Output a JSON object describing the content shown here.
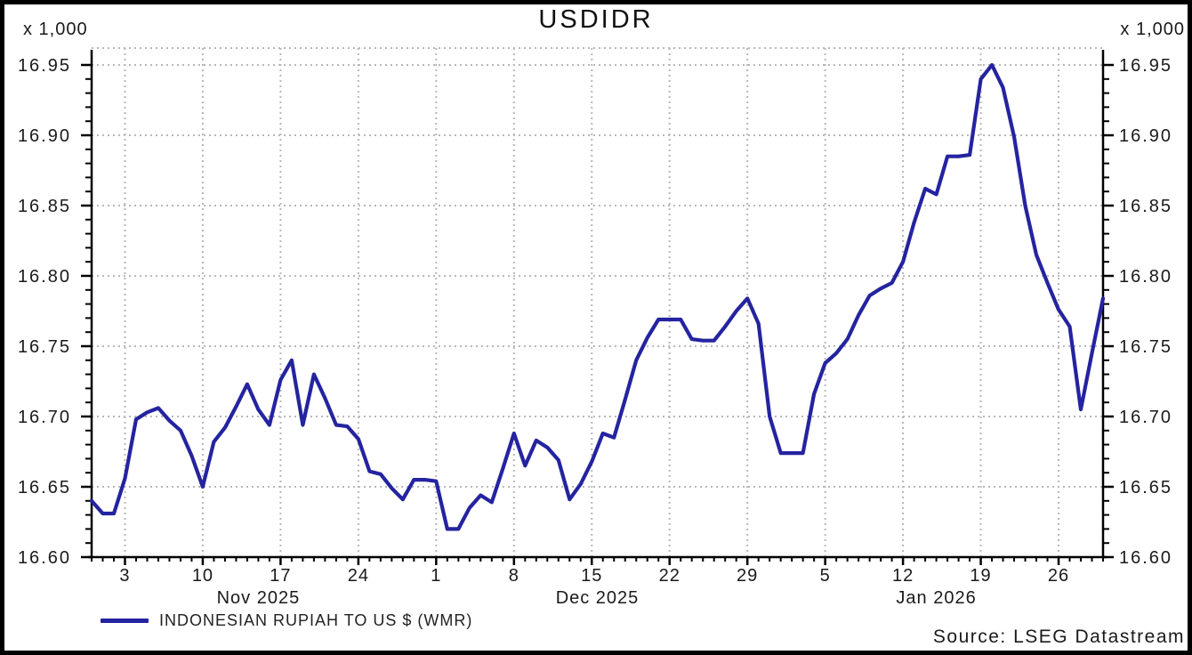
{
  "title": "USDIDR",
  "y_multiplier_label": "x 1,000",
  "source": "Source: LSEG Datastream",
  "legend": {
    "series_label": "INDONESIAN RUPIAH TO US $ (WMR)"
  },
  "colors": {
    "line": "#2424A0",
    "grid": "#b8b8b8",
    "axis": "#000000",
    "text": "#1a1a1a",
    "background": "#ffffff",
    "border": "#000000"
  },
  "chart_data": {
    "type": "line",
    "title": "USDIDR",
    "xlabel": "",
    "ylabel": "x 1,000",
    "ylim": [
      16.6,
      16.95
    ],
    "y_tick_step": 0.05,
    "y_minor_tick_step": 0.01,
    "y_tick_labels": [
      "16.95",
      "16.90",
      "16.85",
      "16.80",
      "16.75",
      "16.70",
      "16.65",
      "16.60"
    ],
    "y_axis_both_sides": true,
    "grid": "dotted",
    "legend_position": "bottom-left",
    "x_tick_indices": [
      3,
      10,
      17,
      24,
      31,
      38,
      45,
      52,
      59,
      66,
      73,
      80,
      87
    ],
    "x_tick_labels": [
      "3",
      "10",
      "17",
      "24",
      "1",
      "8",
      "15",
      "22",
      "29",
      "5",
      "12",
      "19",
      "26"
    ],
    "month_labels": [
      {
        "label": "Nov 2025",
        "center_index": 15
      },
      {
        "label": "Dec 2025",
        "center_index": 45.5
      },
      {
        "label": "Jan 2026",
        "center_index": 76
      }
    ],
    "series": [
      {
        "name": "INDONESIAN RUPIAH TO US $ (WMR)",
        "color": "#2424A0",
        "dates": [
          "2025-10-31",
          "2025-11-01",
          "2025-11-02",
          "2025-11-03",
          "2025-11-04",
          "2025-11-05",
          "2025-11-06",
          "2025-11-07",
          "2025-11-08",
          "2025-11-09",
          "2025-11-10",
          "2025-11-11",
          "2025-11-12",
          "2025-11-13",
          "2025-11-14",
          "2025-11-15",
          "2025-11-16",
          "2025-11-17",
          "2025-11-18",
          "2025-11-19",
          "2025-11-20",
          "2025-11-21",
          "2025-11-22",
          "2025-11-23",
          "2025-11-24",
          "2025-11-25",
          "2025-11-26",
          "2025-11-27",
          "2025-11-28",
          "2025-11-29",
          "2025-11-30",
          "2025-12-01",
          "2025-12-02",
          "2025-12-03",
          "2025-12-04",
          "2025-12-05",
          "2025-12-06",
          "2025-12-07",
          "2025-12-08",
          "2025-12-09",
          "2025-12-10",
          "2025-12-11",
          "2025-12-12",
          "2025-12-13",
          "2025-12-14",
          "2025-12-15",
          "2025-12-16",
          "2025-12-17",
          "2025-12-18",
          "2025-12-19",
          "2025-12-20",
          "2025-12-21",
          "2025-12-22",
          "2025-12-23",
          "2025-12-24",
          "2025-12-25",
          "2025-12-26",
          "2025-12-27",
          "2025-12-28",
          "2025-12-29",
          "2025-12-30",
          "2025-12-31",
          "2026-01-01",
          "2026-01-02",
          "2026-01-03",
          "2026-01-04",
          "2026-01-05",
          "2026-01-06",
          "2026-01-07",
          "2026-01-08",
          "2026-01-09",
          "2026-01-10",
          "2026-01-11",
          "2026-01-12",
          "2026-01-13",
          "2026-01-14",
          "2026-01-15",
          "2026-01-16",
          "2026-01-17",
          "2026-01-18",
          "2026-01-19",
          "2026-01-20",
          "2026-01-21",
          "2026-01-22",
          "2026-01-23",
          "2026-01-24",
          "2026-01-25",
          "2026-01-26",
          "2026-01-27",
          "2026-01-28",
          "2026-01-29",
          "2026-01-30"
        ],
        "values": [
          16.64,
          16.631,
          16.631,
          16.656,
          16.698,
          16.703,
          16.706,
          16.697,
          16.69,
          16.672,
          16.65,
          16.682,
          16.692,
          16.707,
          16.723,
          16.705,
          16.694,
          16.726,
          16.74,
          16.694,
          16.73,
          16.713,
          16.694,
          16.693,
          16.684,
          16.661,
          16.659,
          16.649,
          16.641,
          16.655,
          16.655,
          16.654,
          16.62,
          16.62,
          16.635,
          16.644,
          16.639,
          16.663,
          16.688,
          16.665,
          16.683,
          16.678,
          16.669,
          16.641,
          16.652,
          16.668,
          16.688,
          16.685,
          16.712,
          16.74,
          16.756,
          16.769,
          16.769,
          16.769,
          16.755,
          16.754,
          16.754,
          16.764,
          16.775,
          16.784,
          16.766,
          16.7,
          16.674,
          16.674,
          16.674,
          16.716,
          16.738,
          16.745,
          16.755,
          16.772,
          16.786,
          16.791,
          16.795,
          16.81,
          16.838,
          16.862,
          16.858,
          16.885,
          16.885,
          16.886,
          16.94,
          16.95,
          16.934,
          16.899,
          16.85,
          16.815,
          16.795,
          16.776,
          16.764,
          16.705,
          16.745,
          16.784
        ]
      }
    ]
  }
}
